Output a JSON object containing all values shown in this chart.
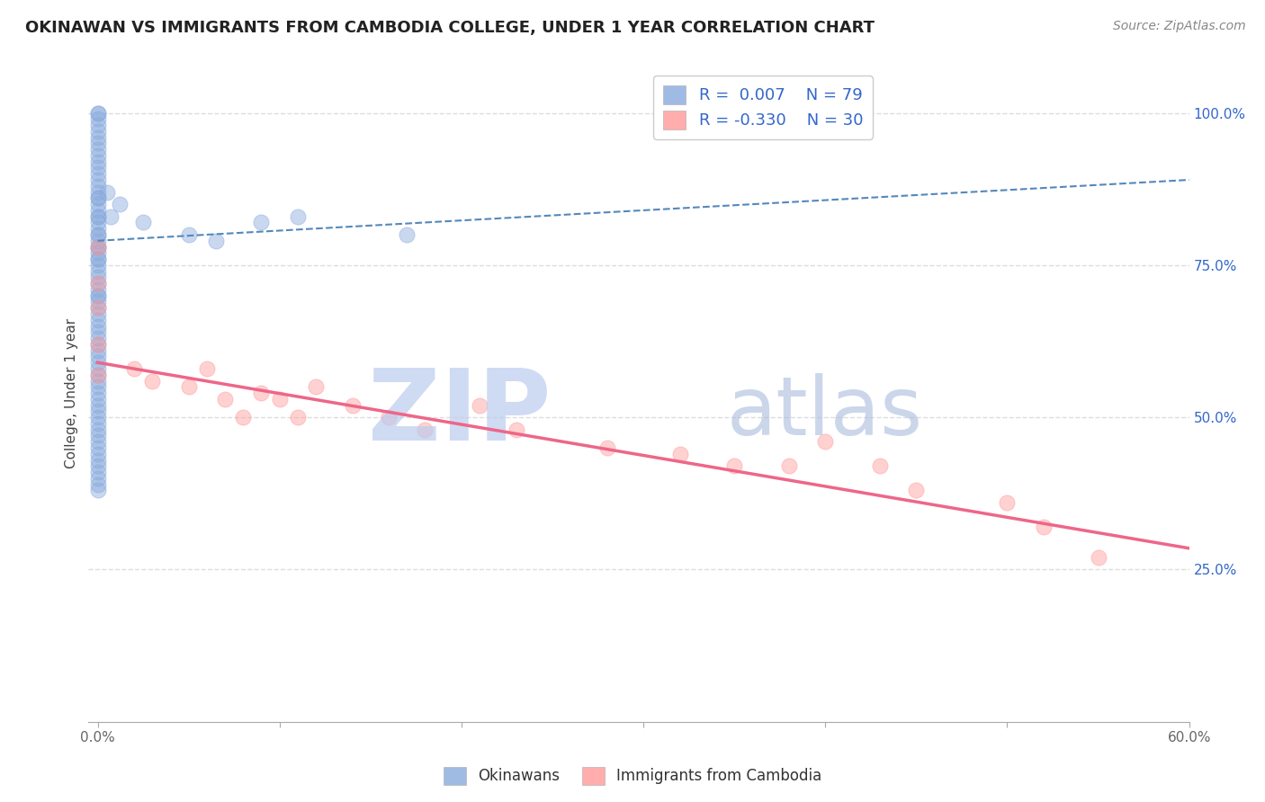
{
  "title": "OKINAWAN VS IMMIGRANTS FROM CAMBODIA COLLEGE, UNDER 1 YEAR CORRELATION CHART",
  "source": "Source: ZipAtlas.com",
  "ylabel": "College, Under 1 year",
  "xlim": [
    -0.005,
    0.6
  ],
  "ylim": [
    0.0,
    1.08
  ],
  "xtick_positions": [
    0.0,
    0.1,
    0.2,
    0.3,
    0.4,
    0.5,
    0.6
  ],
  "xticklabels": [
    "0.0%",
    "",
    "",
    "",
    "",
    "",
    "60.0%"
  ],
  "ytick_positions": [
    0.25,
    0.5,
    0.75,
    1.0
  ],
  "ytick_labels": [
    "25.0%",
    "50.0%",
    "75.0%",
    "100.0%"
  ],
  "blue_color": "#88AADD",
  "pink_color": "#FF9999",
  "blue_line_color": "#5588BB",
  "pink_line_color": "#EE6688",
  "legend_text_color": "#3366CC",
  "legend_blue_R": "0.007",
  "legend_blue_N": "79",
  "legend_pink_R": "-0.330",
  "legend_pink_N": "30",
  "watermark_zip_color": "#BBCCEE",
  "watermark_atlas_color": "#AABBDD",
  "grid_color": "#DDDDDD",
  "background_color": "#FFFFFF",
  "blue_scatter_x": [
    0.0,
    0.0,
    0.0,
    0.0,
    0.0,
    0.0,
    0.0,
    0.0,
    0.0,
    0.0,
    0.0,
    0.0,
    0.0,
    0.0,
    0.0,
    0.0,
    0.0,
    0.0,
    0.0,
    0.0,
    0.0,
    0.0,
    0.0,
    0.0,
    0.0,
    0.0,
    0.0,
    0.0,
    0.0,
    0.0,
    0.0,
    0.0,
    0.0,
    0.0,
    0.0,
    0.0,
    0.0,
    0.0,
    0.0,
    0.0,
    0.0,
    0.0,
    0.0,
    0.0,
    0.0,
    0.0,
    0.0,
    0.0,
    0.0,
    0.0,
    0.0,
    0.0,
    0.0,
    0.0,
    0.0,
    0.0,
    0.0,
    0.0,
    0.0,
    0.0,
    0.0,
    0.0,
    0.0,
    0.0,
    0.0,
    0.0,
    0.0,
    0.0,
    0.0,
    0.0,
    0.005,
    0.007,
    0.012,
    0.025,
    0.05,
    0.065,
    0.09,
    0.11,
    0.17
  ],
  "blue_scatter_y": [
    1.0,
    1.0,
    0.99,
    0.98,
    0.97,
    0.96,
    0.95,
    0.94,
    0.93,
    0.92,
    0.91,
    0.9,
    0.89,
    0.88,
    0.87,
    0.86,
    0.86,
    0.85,
    0.84,
    0.83,
    0.83,
    0.82,
    0.81,
    0.8,
    0.8,
    0.79,
    0.78,
    0.78,
    0.77,
    0.76,
    0.76,
    0.75,
    0.74,
    0.73,
    0.72,
    0.71,
    0.7,
    0.7,
    0.69,
    0.68,
    0.67,
    0.66,
    0.65,
    0.64,
    0.63,
    0.62,
    0.61,
    0.6,
    0.59,
    0.58,
    0.57,
    0.56,
    0.55,
    0.54,
    0.53,
    0.52,
    0.51,
    0.5,
    0.49,
    0.48,
    0.47,
    0.46,
    0.45,
    0.44,
    0.43,
    0.42,
    0.41,
    0.4,
    0.39,
    0.38,
    0.87,
    0.83,
    0.85,
    0.82,
    0.8,
    0.79,
    0.82,
    0.83,
    0.8
  ],
  "pink_scatter_x": [
    0.0,
    0.0,
    0.0,
    0.0,
    0.0,
    0.02,
    0.03,
    0.05,
    0.06,
    0.07,
    0.08,
    0.09,
    0.1,
    0.11,
    0.12,
    0.14,
    0.16,
    0.18,
    0.21,
    0.23,
    0.28,
    0.32,
    0.35,
    0.38,
    0.4,
    0.43,
    0.45,
    0.5,
    0.52,
    0.55
  ],
  "pink_scatter_y": [
    0.78,
    0.72,
    0.68,
    0.62,
    0.57,
    0.58,
    0.56,
    0.55,
    0.58,
    0.53,
    0.5,
    0.54,
    0.53,
    0.5,
    0.55,
    0.52,
    0.5,
    0.48,
    0.52,
    0.48,
    0.45,
    0.44,
    0.42,
    0.42,
    0.46,
    0.42,
    0.38,
    0.36,
    0.32,
    0.27
  ],
  "blue_trend": [
    0.0,
    0.6,
    0.79,
    0.89
  ],
  "pink_trend": [
    0.0,
    0.6,
    0.59,
    0.285
  ],
  "title_fontsize": 13,
  "source_fontsize": 10,
  "tick_fontsize": 11,
  "legend_fontsize": 13
}
